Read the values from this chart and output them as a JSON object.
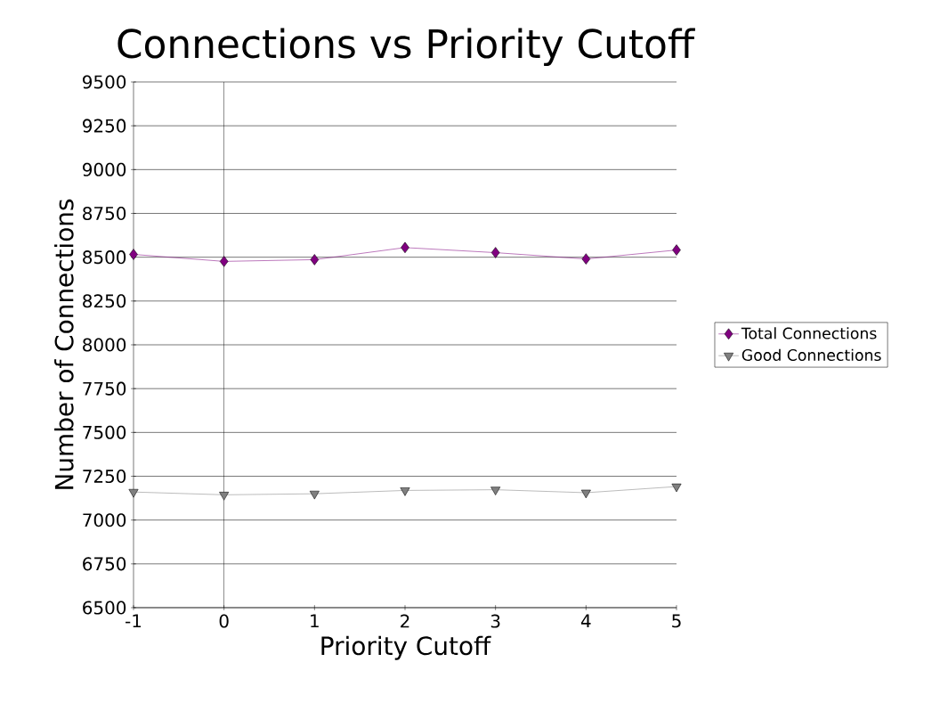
{
  "chart_data": {
    "type": "line",
    "title": "Connections vs Priority Cutoff",
    "xlabel": "Priority Cutoff",
    "ylabel": "Number of Connections",
    "x": [
      -1,
      0,
      1,
      2,
      3,
      4,
      5
    ],
    "series": [
      {
        "name": "Total Connections",
        "color": "#800080",
        "marker": "diamond",
        "values": [
          8516,
          8476,
          8486,
          8555,
          8526,
          8490,
          8541
        ]
      },
      {
        "name": "Good Connections",
        "color": "#808080",
        "marker": "triangle",
        "values": [
          7160,
          7144,
          7150,
          7169,
          7173,
          7156,
          7191
        ]
      }
    ],
    "xlim": [
      -1,
      5
    ],
    "xticks": [
      -1,
      0,
      1,
      2,
      3,
      4,
      5
    ],
    "ylim": [
      6500,
      9500
    ],
    "yticks": [
      6500,
      6750,
      7000,
      7250,
      7500,
      7750,
      8000,
      8250,
      8500,
      8750,
      9000,
      9250,
      9500
    ],
    "grid": "y",
    "legend": "right",
    "ref_lines": [
      {
        "axis": "x",
        "value": 0
      }
    ]
  }
}
